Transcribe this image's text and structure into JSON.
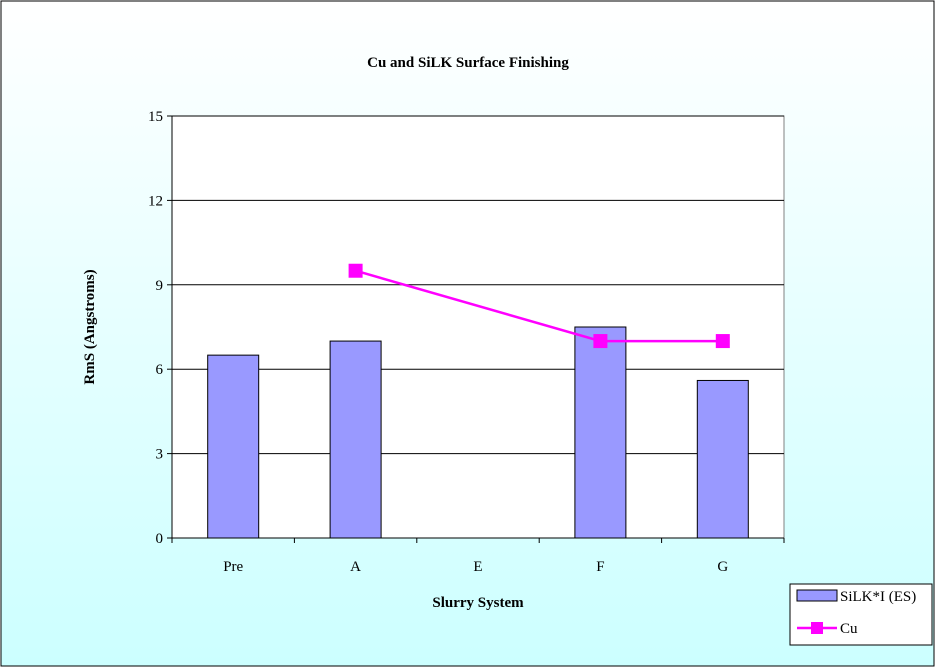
{
  "chart_data": {
    "type": "bar",
    "title": "Cu and SiLK Surface Finishing",
    "xlabel": "Slurry System",
    "ylabel": "RmS (Angstroms)",
    "categories": [
      "Pre",
      "A",
      "E",
      "F",
      "G"
    ],
    "ylim": [
      0,
      15
    ],
    "yticks": [
      "0",
      "3",
      "6",
      "9",
      "12",
      "15"
    ],
    "grid": true,
    "legend_position": "bottom-right",
    "series": [
      {
        "name": "SiLK*I (ES)",
        "type": "bar",
        "color": "#9999ff",
        "values": [
          6.5,
          7.0,
          null,
          7.5,
          5.6
        ]
      },
      {
        "name": "Cu",
        "type": "line",
        "color": "#ff00ff",
        "marker": "square",
        "values": [
          null,
          9.5,
          null,
          7.0,
          7.0
        ]
      }
    ]
  },
  "colors": {
    "chart_background_top": "#ffffff",
    "chart_background_bottom": "#ccffff",
    "plot_background": "#ffffff",
    "bar_fill": "#9999ff",
    "line_color": "#ff00ff"
  }
}
